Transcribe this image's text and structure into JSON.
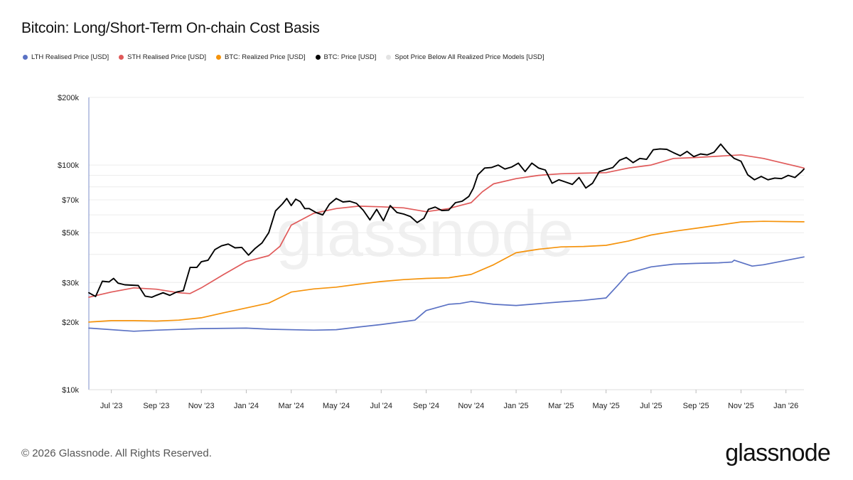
{
  "header": {
    "title": "Bitcoin: Long/Short-Term On-chain Cost Basis"
  },
  "footer": {
    "copyright": "© 2026 Glassnode. All Rights Reserved.",
    "logo_text": "glassnode"
  },
  "watermark": "glassnode",
  "chart_data": {
    "type": "line",
    "title": "Bitcoin: Long/Short-Term On-chain Cost Basis",
    "yscale": "log",
    "ylim": [
      10000,
      200000
    ],
    "xlim": [
      0,
      31.8
    ],
    "y_ticks": [
      {
        "value": 10000,
        "label": "$10k"
      },
      {
        "value": 20000,
        "label": "$20k"
      },
      {
        "value": 30000,
        "label": "$30k"
      },
      {
        "value": 50000,
        "label": "$50k"
      },
      {
        "value": 70000,
        "label": "$70k"
      },
      {
        "value": 100000,
        "label": "$100k"
      },
      {
        "value": 200000,
        "label": "$200k"
      }
    ],
    "y_gridlines": [
      10000,
      20000,
      30000,
      40000,
      50000,
      60000,
      70000,
      80000,
      90000,
      100000,
      200000
    ],
    "x_ticks": [
      {
        "value": 1,
        "label": "Jul '23"
      },
      {
        "value": 3,
        "label": "Sep '23"
      },
      {
        "value": 5,
        "label": "Nov '23"
      },
      {
        "value": 7,
        "label": "Jan '24"
      },
      {
        "value": 9,
        "label": "Mar '24"
      },
      {
        "value": 11,
        "label": "May '24"
      },
      {
        "value": 13,
        "label": "Jul '24"
      },
      {
        "value": 15,
        "label": "Sep '24"
      },
      {
        "value": 17,
        "label": "Nov '24"
      },
      {
        "value": 19,
        "label": "Jan '25"
      },
      {
        "value": 21,
        "label": "Mar '25"
      },
      {
        "value": 23,
        "label": "May '25"
      },
      {
        "value": 25,
        "label": "Jul '25"
      },
      {
        "value": 27,
        "label": "Sep '25"
      },
      {
        "value": 29,
        "label": "Nov '25"
      },
      {
        "value": 31,
        "label": "Jan '26"
      }
    ],
    "x_unit": "months since Jun 2023",
    "legend_position": "top-left",
    "series": [
      {
        "name": "LTH Realised Price [USD]",
        "color": "#5b72c4",
        "x": [
          0,
          2,
          3,
          5,
          7,
          8,
          10,
          11,
          12,
          13,
          14.5,
          15,
          16,
          16.5,
          17,
          18,
          19,
          21,
          22,
          23,
          23.5,
          24,
          25,
          26,
          27,
          28,
          28.6,
          28.7,
          29.5,
          30,
          31.8
        ],
        "values": [
          18800,
          18200,
          18400,
          18700,
          18800,
          18600,
          18400,
          18500,
          19000,
          19500,
          20400,
          22500,
          24000,
          24200,
          24700,
          24000,
          23700,
          24600,
          25000,
          25600,
          29000,
          33000,
          35200,
          36200,
          36500,
          36700,
          37000,
          37700,
          35500,
          36000,
          39000
        ]
      },
      {
        "name": "STH Realised Price [USD]",
        "color": "#e05a5a",
        "x": [
          0,
          1,
          2,
          3,
          4,
          4.5,
          5,
          6,
          7,
          8,
          8.5,
          9,
          10,
          11,
          12,
          13,
          14,
          15,
          16,
          16.5,
          17,
          17.5,
          18,
          19,
          20,
          21,
          22,
          23,
          24,
          25,
          26,
          27,
          28,
          29,
          30,
          31.8
        ],
        "values": [
          25800,
          27200,
          28400,
          28000,
          27000,
          26800,
          28400,
          32600,
          37200,
          39500,
          43500,
          54000,
          61000,
          64000,
          65600,
          65200,
          64500,
          62000,
          64000,
          66000,
          68000,
          76000,
          82500,
          87000,
          90000,
          91500,
          92000,
          92500,
          97000,
          100000,
          107000,
          108000,
          109500,
          111000,
          107000,
          97000
        ]
      },
      {
        "name": "BTC: Realized Price [USD]",
        "color": "#f5930c",
        "x": [
          0,
          1,
          2,
          3,
          4,
          5,
          6,
          7,
          8,
          8.5,
          9,
          10,
          11,
          12,
          13,
          14,
          15,
          16,
          17,
          18,
          19,
          20,
          21,
          22,
          23,
          24,
          25,
          26,
          27,
          28,
          29,
          30,
          31,
          31.8
        ],
        "values": [
          20000,
          20300,
          20300,
          20200,
          20400,
          20900,
          22000,
          23100,
          24300,
          25700,
          27200,
          28100,
          28600,
          29500,
          30300,
          30900,
          31300,
          31500,
          32600,
          36000,
          40700,
          42200,
          43200,
          43400,
          43900,
          45900,
          48800,
          50700,
          52300,
          54000,
          55800,
          56200,
          56000,
          55900
        ]
      },
      {
        "name": "BTC: Price [USD]",
        "color": "#000000",
        "x": [
          0,
          0.3,
          0.6,
          0.9,
          1.1,
          1.3,
          1.6,
          1.9,
          2.2,
          2.5,
          2.8,
          3.0,
          3.3,
          3.6,
          3.9,
          4.2,
          4.5,
          4.8,
          5.0,
          5.3,
          5.6,
          5.9,
          6.2,
          6.5,
          6.8,
          7.1,
          7.4,
          7.7,
          8.0,
          8.3,
          8.6,
          8.8,
          9.0,
          9.2,
          9.4,
          9.6,
          9.8,
          10.1,
          10.4,
          10.7,
          11.0,
          11.3,
          11.6,
          11.9,
          12.2,
          12.5,
          12.8,
          13.1,
          13.4,
          13.7,
          14.0,
          14.3,
          14.6,
          14.9,
          15.1,
          15.4,
          15.7,
          16.0,
          16.3,
          16.6,
          16.9,
          17.1,
          17.3,
          17.6,
          17.9,
          18.2,
          18.5,
          18.8,
          19.1,
          19.4,
          19.7,
          20.0,
          20.3,
          20.6,
          20.9,
          21.2,
          21.5,
          21.8,
          22.1,
          22.4,
          22.7,
          23.0,
          23.3,
          23.6,
          23.9,
          24.2,
          24.5,
          24.8,
          25.1,
          25.4,
          25.7,
          26.0,
          26.3,
          26.6,
          26.9,
          27.2,
          27.5,
          27.8,
          28.1,
          28.4,
          28.7,
          29.0,
          29.3,
          29.6,
          29.9,
          30.2,
          30.5,
          30.8,
          31.1,
          31.4,
          31.7,
          31.8
        ],
        "values": [
          27000,
          26000,
          30400,
          30200,
          31300,
          29800,
          29300,
          29200,
          29100,
          26100,
          25800,
          26300,
          27000,
          26300,
          27200,
          27600,
          35000,
          35000,
          37100,
          37700,
          42000,
          43700,
          44500,
          42800,
          43000,
          39700,
          42600,
          45000,
          50000,
          62500,
          67000,
          71000,
          66000,
          70500,
          68700,
          64000,
          64000,
          61500,
          60000,
          67000,
          71000,
          68500,
          69000,
          67500,
          63000,
          57000,
          63500,
          56500,
          66000,
          61500,
          60500,
          59000,
          55500,
          58000,
          63500,
          65000,
          62700,
          63000,
          68000,
          69000,
          72500,
          79000,
          90500,
          97000,
          97500,
          100000,
          96000,
          98000,
          102000,
          93500,
          102000,
          97000,
          95000,
          83000,
          86000,
          84000,
          82000,
          88000,
          79000,
          83000,
          93500,
          95500,
          97500,
          105000,
          108000,
          102500,
          107000,
          106000,
          117000,
          118000,
          117500,
          113500,
          110000,
          115000,
          109000,
          112000,
          111000,
          114000,
          124000,
          114000,
          107000,
          104000,
          90500,
          86000,
          89000,
          86000,
          87500,
          87000,
          90000,
          88000,
          93500,
          96000
        ]
      },
      {
        "name": "Spot Price Below All Realized Price Models [USD]",
        "color": "#e3e3e3",
        "x": [],
        "values": []
      }
    ]
  }
}
